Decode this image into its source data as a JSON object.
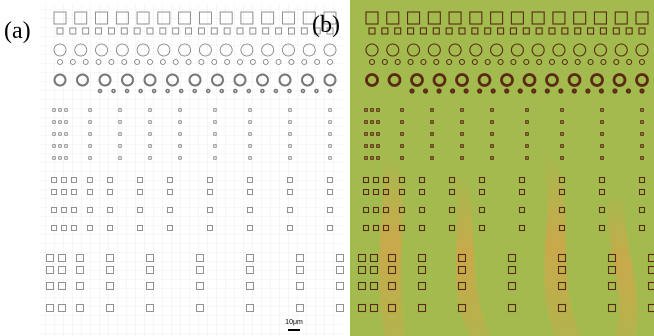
{
  "panels": [
    {
      "label": "(a)",
      "scale_bar": "10μm"
    },
    {
      "label": "(b)"
    }
  ]
}
